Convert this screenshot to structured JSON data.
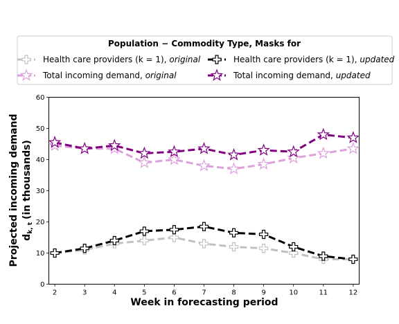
{
  "chart_data": {
    "type": "line",
    "xlabel": "Week in forecasting period",
    "ylabel_line1": "Projected incoming demand",
    "ylabel_line2_main": "d",
    "ylabel_line2_sub": "k, t",
    "ylabel_line2_rest": "(in thousands)",
    "legend_title": "Population − Commodity Type,  Masks for",
    "legend_placement": "top, above plot",
    "grid": false,
    "x": [
      2,
      3,
      4,
      5,
      6,
      7,
      8,
      9,
      10,
      11,
      12
    ],
    "xticks": [
      "2",
      "3",
      "4",
      "5",
      "6",
      "7",
      "8",
      "9",
      "10",
      "11",
      "12"
    ],
    "xlim": [
      1.8,
      12.2
    ],
    "ylim": [
      0,
      60
    ],
    "yticks": [
      "0",
      "10",
      "20",
      "30",
      "40",
      "50",
      "60"
    ],
    "series": [
      {
        "name_main": "Health care providers (k = 1), ",
        "name_qualifier": "original",
        "color": "#c0c0c0",
        "marker": "plus",
        "values": [
          10,
          11,
          13,
          14,
          15,
          13,
          12,
          11.5,
          10,
          8,
          8
        ]
      },
      {
        "name_main": "Total incoming demand, ",
        "name_qualifier": "original",
        "color": "#dda0dd",
        "marker": "star",
        "values": [
          44.5,
          43.5,
          43.5,
          39,
          40,
          38,
          37,
          38.5,
          40.5,
          42,
          43.5
        ]
      },
      {
        "name_main": "Health care providers (k = 1), ",
        "name_qualifier": "updated",
        "color": "#000000",
        "marker": "plus",
        "values": [
          10,
          11.5,
          14,
          17,
          17.5,
          18.5,
          16.5,
          16,
          12,
          9,
          8
        ]
      },
      {
        "name_main": "Total incoming demand, ",
        "name_qualifier": "updated",
        "color": "#800080",
        "marker": "star",
        "values": [
          45.5,
          43.5,
          44.5,
          42,
          42.5,
          43.5,
          41.5,
          43,
          42.5,
          48,
          47
        ]
      }
    ]
  }
}
